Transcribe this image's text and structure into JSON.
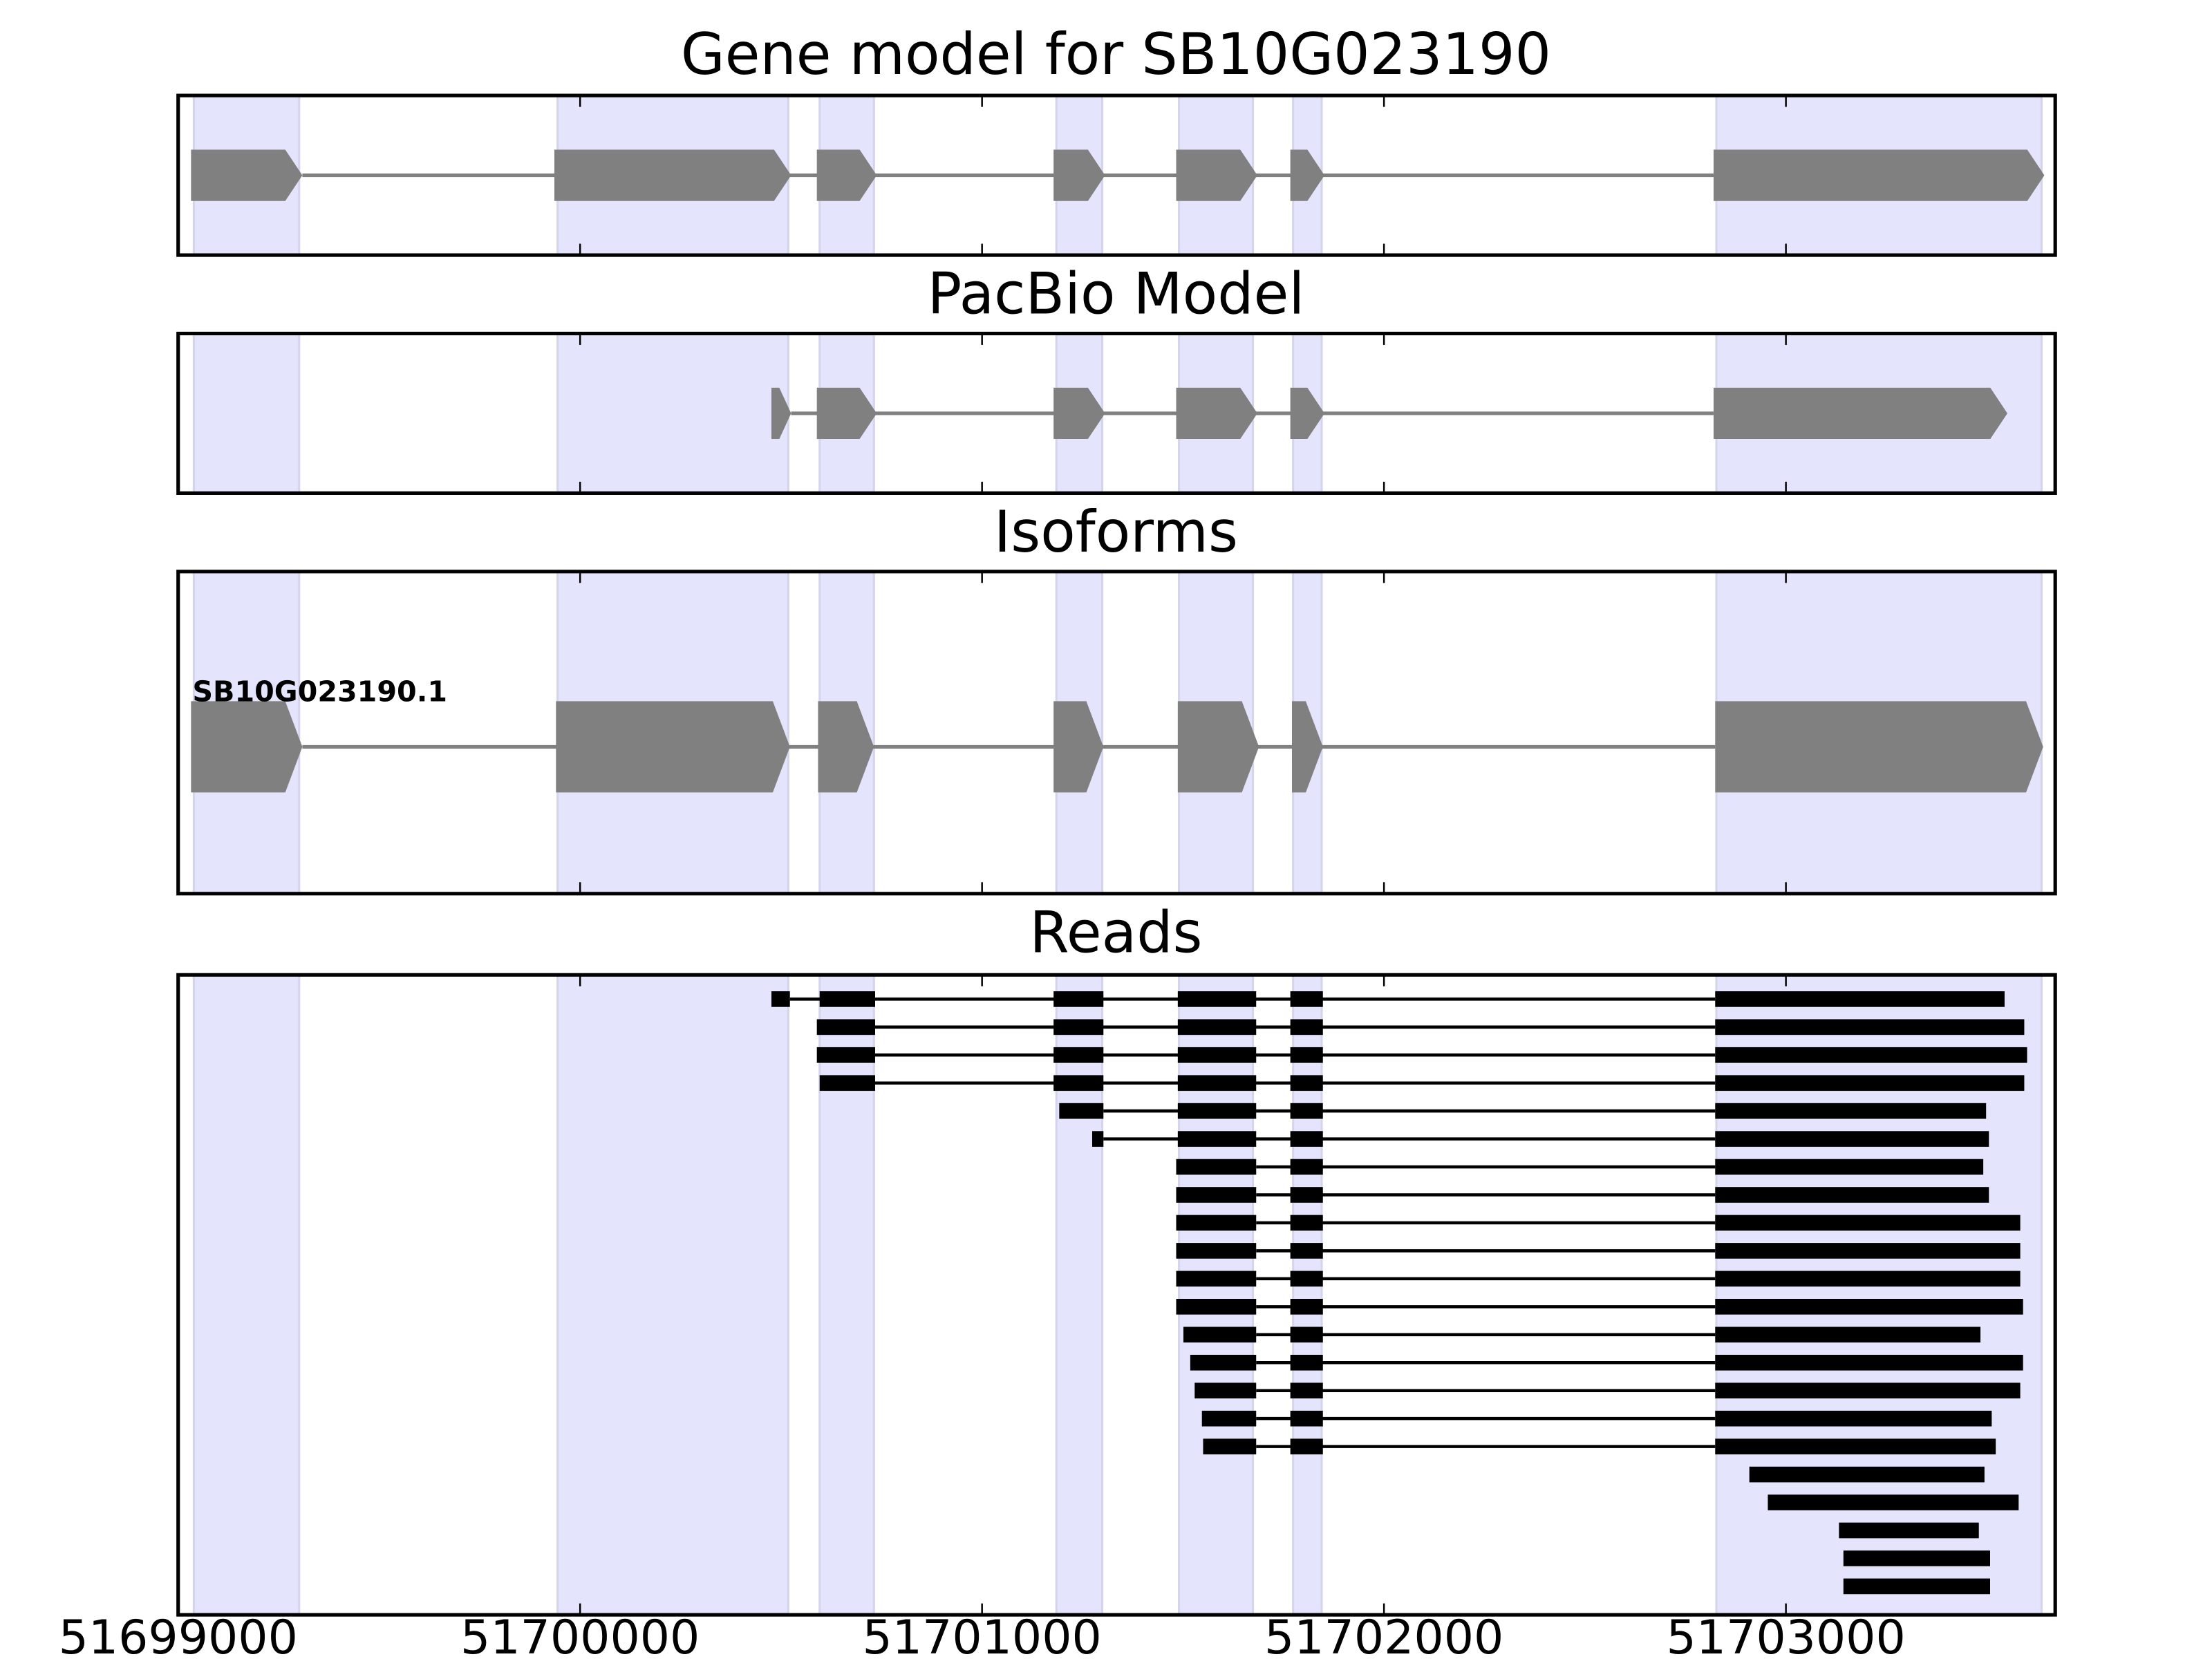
{
  "chart_data": {
    "type": "gene-track",
    "xlim": [
      51699000,
      51703670
    ],
    "x_ticks": [
      51699000,
      51700000,
      51701000,
      51702000,
      51703000
    ],
    "x_tick_labels": [
      "51699000",
      "51700000",
      "51701000",
      "51702000",
      "51703000"
    ],
    "colors": {
      "exon": "#808080",
      "intron": "#808080",
      "read": "#000000",
      "shade": "#e4e4fc",
      "shade_edge": "#d4d4ec"
    },
    "shaded_regions": [
      [
        51699039,
        51699301
      ],
      [
        51699944,
        51700518
      ],
      [
        51700596,
        51700731
      ],
      [
        51701185,
        51701299
      ],
      [
        51701490,
        51701674
      ],
      [
        51701774,
        51701845
      ],
      [
        51702827,
        51703636
      ]
    ],
    "panels": [
      {
        "title": "Gene model for SB10G023190",
        "kind": "model",
        "models": [
          {
            "label": "",
            "exons": [
              [
                51699032,
                51699309
              ],
              [
                51699936,
                51700525
              ],
              [
                51700589,
                51700738
              ],
              [
                51701178,
                51701306
              ],
              [
                51701483,
                51701685
              ],
              [
                51701767,
                51701852
              ],
              [
                51702820,
                51703643
              ]
            ]
          }
        ]
      },
      {
        "title": "PacBio Model",
        "kind": "model",
        "models": [
          {
            "label": "",
            "exons": [
              [
                51700476,
                51700525
              ],
              [
                51700589,
                51700738
              ],
              [
                51701178,
                51701306
              ],
              [
                51701483,
                51701685
              ],
              [
                51701767,
                51701852
              ],
              [
                51702820,
                51703551
              ]
            ]
          }
        ]
      },
      {
        "title": "Isoforms",
        "kind": "isoform",
        "models": [
          {
            "label": "SB10G023190.1",
            "exons": [
              [
                51699032,
                51699309
              ],
              [
                51699940,
                51700522
              ],
              [
                51700592,
                51700731
              ],
              [
                51701178,
                51701302
              ],
              [
                51701487,
                51701689
              ],
              [
                51701771,
                51701848
              ],
              [
                51702824,
                51703640
              ]
            ]
          }
        ]
      },
      {
        "title": "Reads",
        "kind": "reads",
        "reads": [
          [
            [
              51700476,
              51700522
            ],
            [
              51700596,
              51700734
            ],
            [
              51701178,
              51701302
            ],
            [
              51701487,
              51701682
            ],
            [
              51701767,
              51701848
            ],
            [
              51702824,
              51703544
            ]
          ],
          [
            [
              51700589,
              51700734
            ],
            [
              51701178,
              51701302
            ],
            [
              51701487,
              51701682
            ],
            [
              51701767,
              51701848
            ],
            [
              51702824,
              51703593
            ]
          ],
          [
            [
              51700589,
              51700734
            ],
            [
              51701178,
              51701302
            ],
            [
              51701487,
              51701682
            ],
            [
              51701767,
              51701848
            ],
            [
              51702824,
              51703600
            ]
          ],
          [
            [
              51700596,
              51700734
            ],
            [
              51701178,
              51701302
            ],
            [
              51701487,
              51701682
            ],
            [
              51701767,
              51701848
            ],
            [
              51702824,
              51703593
            ]
          ],
          [
            [
              51701192,
              51701302
            ],
            [
              51701487,
              51701682
            ],
            [
              51701767,
              51701848
            ],
            [
              51702824,
              51703498
            ]
          ],
          [
            [
              51701274,
              51701302
            ],
            [
              51701487,
              51701682
            ],
            [
              51701767,
              51701848
            ],
            [
              51702824,
              51703505
            ]
          ],
          [
            [
              51701483,
              51701682
            ],
            [
              51701767,
              51701848
            ],
            [
              51702824,
              51703491
            ]
          ],
          [
            [
              51701483,
              51701682
            ],
            [
              51701767,
              51701848
            ],
            [
              51702824,
              51703505
            ]
          ],
          [
            [
              51701483,
              51701682
            ],
            [
              51701767,
              51701848
            ],
            [
              51702824,
              51703583
            ]
          ],
          [
            [
              51701483,
              51701682
            ],
            [
              51701767,
              51701848
            ],
            [
              51702824,
              51703583
            ]
          ],
          [
            [
              51701483,
              51701682
            ],
            [
              51701767,
              51701848
            ],
            [
              51702824,
              51703583
            ]
          ],
          [
            [
              51701483,
              51701682
            ],
            [
              51701767,
              51701848
            ],
            [
              51702824,
              51703590
            ]
          ],
          [
            [
              51701501,
              51701682
            ],
            [
              51701767,
              51701848
            ],
            [
              51702824,
              51703484
            ]
          ],
          [
            [
              51701518,
              51701682
            ],
            [
              51701767,
              51701848
            ],
            [
              51702824,
              51703590
            ]
          ],
          [
            [
              51701529,
              51701682
            ],
            [
              51701767,
              51701848
            ],
            [
              51702824,
              51703583
            ]
          ],
          [
            [
              51701547,
              51701682
            ],
            [
              51701767,
              51701848
            ],
            [
              51702824,
              51703512
            ]
          ],
          [
            [
              51701550,
              51701682
            ],
            [
              51701767,
              51701848
            ],
            [
              51702824,
              51703522
            ]
          ],
          [
            [
              51702909,
              51703494
            ]
          ],
          [
            [
              51702955,
              51703579
            ]
          ],
          [
            [
              51703132,
              51703480
            ]
          ],
          [
            [
              51703143,
              51703508
            ]
          ],
          [
            [
              51703143,
              51703508
            ]
          ]
        ]
      }
    ]
  }
}
